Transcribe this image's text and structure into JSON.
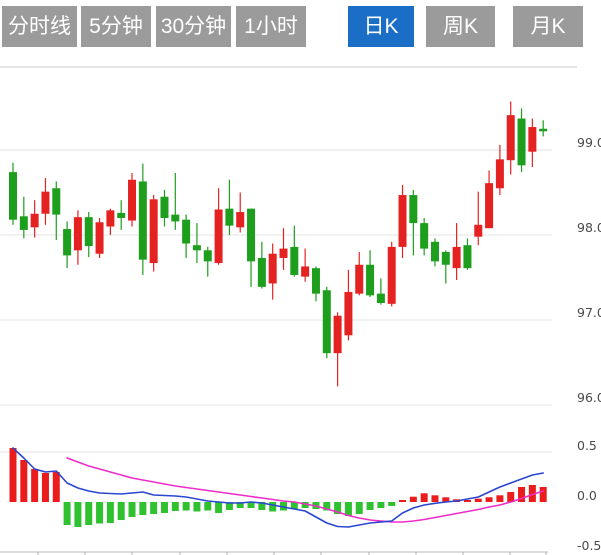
{
  "tabbar": {
    "items": [
      {
        "label": "分时线",
        "name": "tab-timeline",
        "active": false
      },
      {
        "label": "5分钟",
        "name": "tab-5min",
        "active": false
      },
      {
        "label": "30分钟",
        "name": "tab-30min",
        "active": false
      },
      {
        "label": "1小时",
        "name": "tab-1hour",
        "active": false
      },
      {
        "label": "日K",
        "name": "tab-daily-k",
        "active": true
      },
      {
        "label": "周K",
        "name": "tab-weekly-k",
        "active": false
      },
      {
        "label": "月K",
        "name": "tab-monthly-k",
        "active": false
      }
    ],
    "active_bg": "#1a6ec5",
    "inactive_bg": "#9b9b9b",
    "text_color": "#ffffff"
  },
  "chart_data": {
    "type": "candlestick",
    "title": "",
    "legend_position": "none",
    "grid": true,
    "panels": [
      {
        "name": "price",
        "ylabel": "",
        "y_ticks": [
          99.0,
          98.0,
          97.0,
          96.0
        ],
        "ylim": [
          95.8,
          100.0
        ]
      },
      {
        "name": "macd",
        "ylabel": "",
        "y_ticks": [
          0.5,
          0.0,
          -0.5
        ],
        "ylim": [
          -0.5,
          0.5
        ]
      }
    ],
    "up_color": "#e52222",
    "down_color": "#1d9e1d",
    "macd_up_color": "#ea1c1c",
    "macd_down_color": "#2fc12f",
    "dif_color": "#2b46d0",
    "dea_color": "#f02cc8",
    "candles_ohlc": [
      [
        98.74,
        98.85,
        98.12,
        98.18
      ],
      [
        98.22,
        98.45,
        97.96,
        98.06
      ],
      [
        98.09,
        98.41,
        97.97,
        98.25
      ],
      [
        98.25,
        98.67,
        98.12,
        98.51
      ],
      [
        98.55,
        98.63,
        97.94,
        98.24
      ],
      [
        98.07,
        98.16,
        97.61,
        97.76
      ],
      [
        97.82,
        98.29,
        97.65,
        98.21
      ],
      [
        98.21,
        98.27,
        97.74,
        97.87
      ],
      [
        97.78,
        98.2,
        97.73,
        98.15
      ],
      [
        98.1,
        98.31,
        98.0,
        98.29
      ],
      [
        98.26,
        98.41,
        98.06,
        98.2
      ],
      [
        98.17,
        98.73,
        98.1,
        98.65
      ],
      [
        98.63,
        98.84,
        97.53,
        97.71
      ],
      [
        97.67,
        98.47,
        97.57,
        98.42
      ],
      [
        98.45,
        98.53,
        98.1,
        98.2
      ],
      [
        98.24,
        98.73,
        98.06,
        98.16
      ],
      [
        98.18,
        98.24,
        97.73,
        97.9
      ],
      [
        97.88,
        98.14,
        97.67,
        97.82
      ],
      [
        97.82,
        97.86,
        97.51,
        97.69
      ],
      [
        97.67,
        98.55,
        97.65,
        98.3
      ],
      [
        98.31,
        98.65,
        98.0,
        98.11
      ],
      [
        98.09,
        98.5,
        98.03,
        98.27
      ],
      [
        98.31,
        98.31,
        97.39,
        97.69
      ],
      [
        97.73,
        97.92,
        97.37,
        97.39
      ],
      [
        97.43,
        97.9,
        97.24,
        97.78
      ],
      [
        97.73,
        98.08,
        97.59,
        97.84
      ],
      [
        97.86,
        98.11,
        97.51,
        97.53
      ],
      [
        97.51,
        97.84,
        97.45,
        97.63
      ],
      [
        97.61,
        97.63,
        97.22,
        97.31
      ],
      [
        97.35,
        97.39,
        96.55,
        96.61
      ],
      [
        96.61,
        97.09,
        96.22,
        97.05
      ],
      [
        96.82,
        97.59,
        96.76,
        97.33
      ],
      [
        97.31,
        97.8,
        97.29,
        97.65
      ],
      [
        97.65,
        97.82,
        97.27,
        97.29
      ],
      [
        97.31,
        97.49,
        97.18,
        97.2
      ],
      [
        97.19,
        97.92,
        97.16,
        97.86
      ],
      [
        97.86,
        98.59,
        97.73,
        98.47
      ],
      [
        98.47,
        98.53,
        97.76,
        98.14
      ],
      [
        98.14,
        98.2,
        97.76,
        97.84
      ],
      [
        97.92,
        97.96,
        97.63,
        97.69
      ],
      [
        97.8,
        97.82,
        97.43,
        97.65
      ],
      [
        97.61,
        98.14,
        97.47,
        97.86
      ],
      [
        97.88,
        97.96,
        97.59,
        97.61
      ],
      [
        97.98,
        98.51,
        97.88,
        98.12
      ],
      [
        98.08,
        98.76,
        98.08,
        98.61
      ],
      [
        98.55,
        99.06,
        98.47,
        98.89
      ],
      [
        98.88,
        99.57,
        98.71,
        99.41
      ],
      [
        99.37,
        99.49,
        98.74,
        98.82
      ],
      [
        98.98,
        99.37,
        98.8,
        99.27
      ],
      [
        99.25,
        99.35,
        99.16,
        99.22
      ]
    ],
    "macd": {
      "histogram": [
        0.54,
        0.42,
        0.33,
        0.29,
        0.3,
        -0.23,
        -0.25,
        -0.23,
        -0.215,
        -0.21,
        -0.18,
        -0.15,
        -0.13,
        -0.12,
        -0.11,
        -0.09,
        -0.085,
        -0.095,
        -0.085,
        -0.11,
        -0.08,
        -0.06,
        -0.06,
        -0.08,
        -0.095,
        -0.085,
        -0.07,
        -0.06,
        -0.07,
        -0.085,
        -0.12,
        -0.14,
        -0.12,
        -0.08,
        -0.06,
        -0.04,
        0.012,
        0.053,
        0.087,
        0.067,
        0.047,
        0.027,
        0.015,
        0.033,
        0.047,
        0.067,
        0.1,
        0.15,
        0.17,
        0.15
      ],
      "dif": [
        0.54,
        0.44,
        0.33,
        0.3,
        0.31,
        0.19,
        0.14,
        0.11,
        0.09,
        0.085,
        0.08,
        0.09,
        0.1,
        0.07,
        0.065,
        0.06,
        0.05,
        0.03,
        0.01,
        0.0,
        -0.01,
        -0.01,
        0.0,
        -0.01,
        -0.03,
        -0.05,
        -0.07,
        -0.09,
        -0.15,
        -0.21,
        -0.245,
        -0.25,
        -0.23,
        -0.21,
        -0.2,
        -0.19,
        -0.11,
        -0.06,
        -0.03,
        -0.013,
        0.0,
        0.01,
        0.03,
        0.05,
        0.1,
        0.15,
        0.19,
        0.23,
        0.27,
        0.29
      ],
      "dea": [
        null,
        null,
        null,
        null,
        null,
        0.44,
        0.4,
        0.36,
        0.33,
        0.3,
        0.27,
        0.24,
        0.22,
        0.2,
        0.18,
        0.16,
        0.145,
        0.13,
        0.115,
        0.1,
        0.085,
        0.07,
        0.055,
        0.04,
        0.025,
        0.01,
        0.0,
        -0.02,
        -0.04,
        -0.07,
        -0.1,
        -0.135,
        -0.16,
        -0.18,
        -0.19,
        -0.2,
        -0.2,
        -0.19,
        -0.175,
        -0.155,
        -0.135,
        -0.115,
        -0.095,
        -0.075,
        -0.05,
        -0.03,
        0.0,
        0.035,
        0.075,
        0.11
      ]
    }
  }
}
